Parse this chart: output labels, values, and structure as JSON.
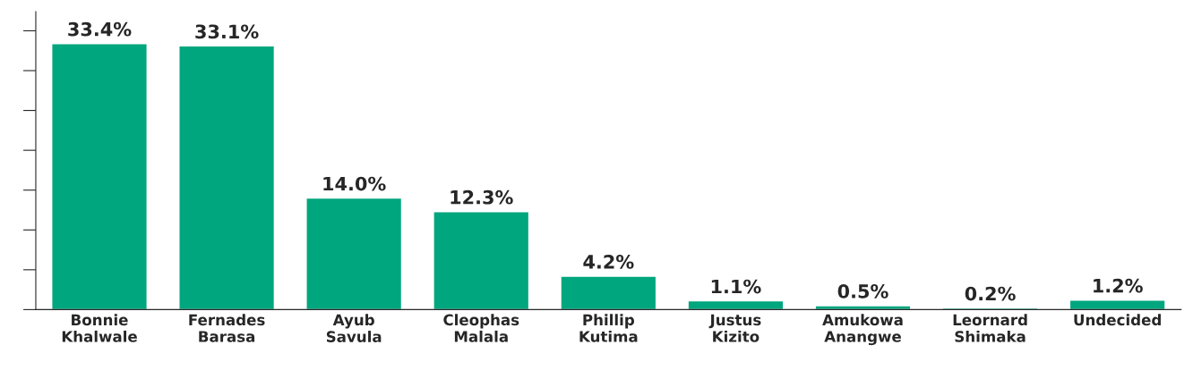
{
  "chart_data": {
    "type": "bar",
    "categories": [
      "Bonnie\nKhalwale",
      "Fernades\nBarasa",
      "Ayub\nSavula",
      "Cleophas\nMalala",
      "Phillip\nKutima",
      "Justus\nKizito",
      "Amukowa\nAnangwe",
      "Leornard\nShimaka",
      "Undecided"
    ],
    "values": [
      33.4,
      33.1,
      14.0,
      12.3,
      4.2,
      1.1,
      0.5,
      0.2,
      1.2
    ],
    "value_labels": [
      "33.4%",
      "33.1%",
      "14.0%",
      "12.3%",
      "4.2%",
      "1.1%",
      "0.5%",
      "0.2%",
      "1.2%"
    ],
    "color": "#00a67e",
    "tick_labels": "x",
    "grid": false,
    "legend": false
  }
}
